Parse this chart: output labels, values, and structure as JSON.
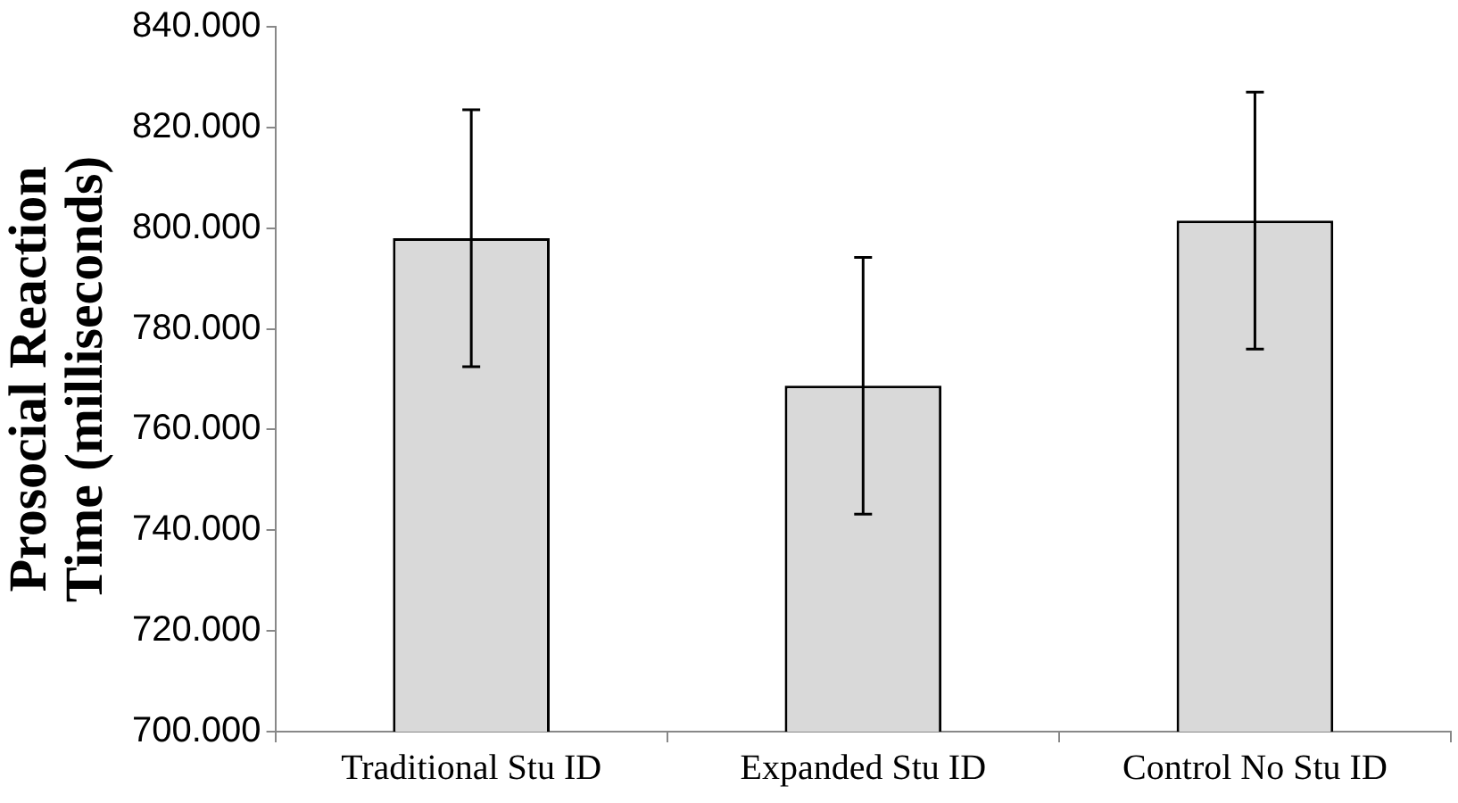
{
  "chart_data": {
    "type": "bar",
    "ylabel": "Prosocial Reaction Time (milliseconds)",
    "categories": [
      "Traditional Stu ID",
      "Expanded Stu ID",
      "Control No Stu ID"
    ],
    "values": [
      798,
      768.7,
      801.5
    ],
    "errors": [
      25.5,
      25.5,
      25.5
    ],
    "color": "#d9d9d9",
    "ylim": [
      700,
      840
    ],
    "yticks": [
      {
        "value": 700,
        "label": "700.000"
      },
      {
        "value": 720,
        "label": "720.000"
      },
      {
        "value": 740,
        "label": "740.000"
      },
      {
        "value": 760,
        "label": "760.000"
      },
      {
        "value": 780,
        "label": "780.000"
      },
      {
        "value": 800,
        "label": "800.000"
      },
      {
        "value": 820,
        "label": "820.000"
      },
      {
        "value": 840,
        "label": "840.000"
      }
    ],
    "grid": false,
    "legend": false
  }
}
